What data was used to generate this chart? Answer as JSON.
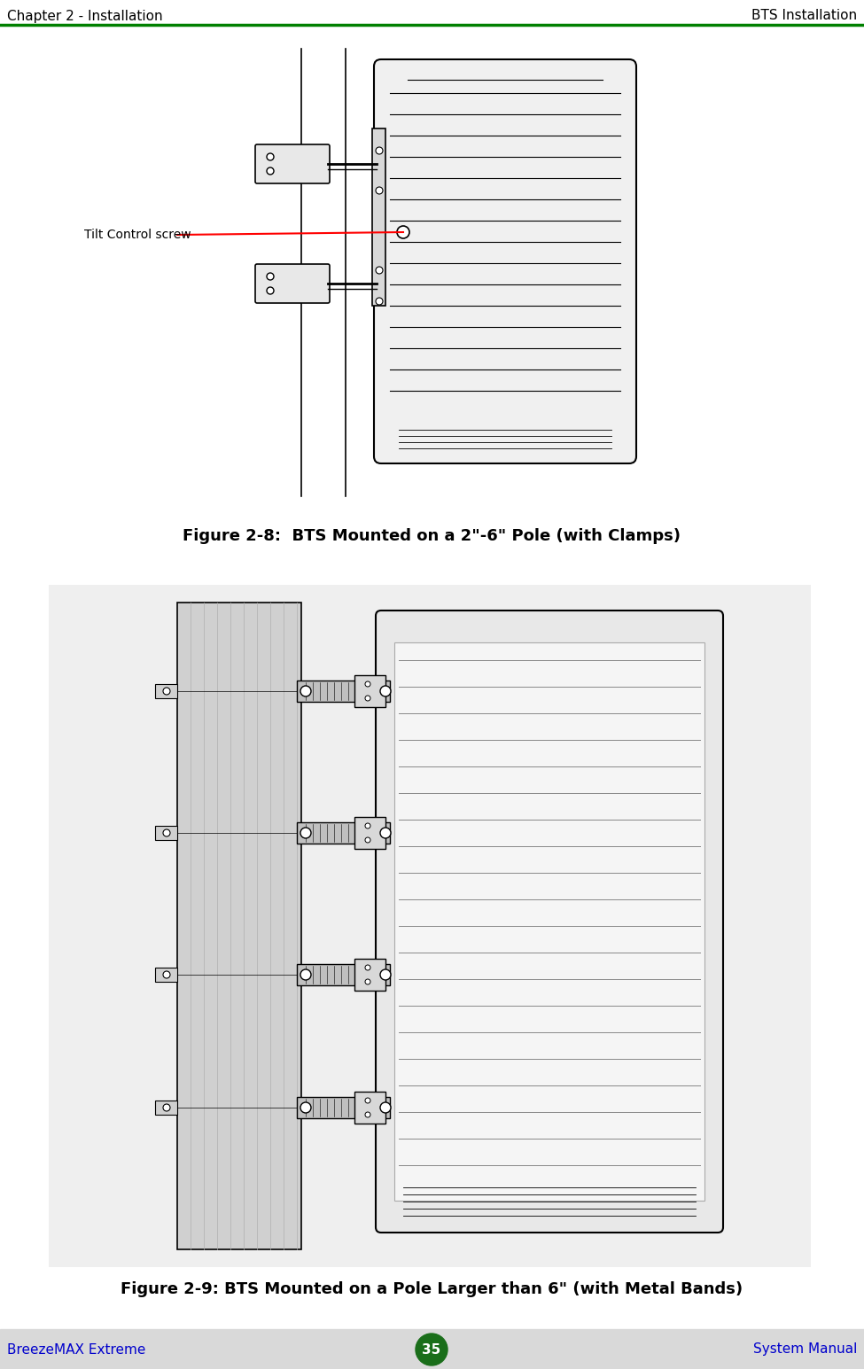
{
  "page_bg": "#ffffff",
  "header_left": "Chapter 2 - Installation",
  "header_right": "BTS Installation",
  "header_line_color": "#008000",
  "footer_left": "BreezeMAX Extreme",
  "footer_center": "35",
  "footer_right": "System Manual",
  "footer_bg": "#d9d9d9",
  "footer_circle_color": "#1a6e1a",
  "footer_text_color": "#0000cc",
  "header_text_color": "#000000",
  "fig1_caption": "Figure 2-8:  BTS Mounted on a 2\"-6\" Pole (with Clamps)",
  "fig2_caption": "Figure 2-9: BTS Mounted on a Pole Larger than 6\" (with Metal Bands)",
  "annotation_text": "Tilt Control screw",
  "annotation_color": "#ff0000",
  "caption_fontsize": 13,
  "header_fontsize": 11,
  "footer_fontsize": 11
}
